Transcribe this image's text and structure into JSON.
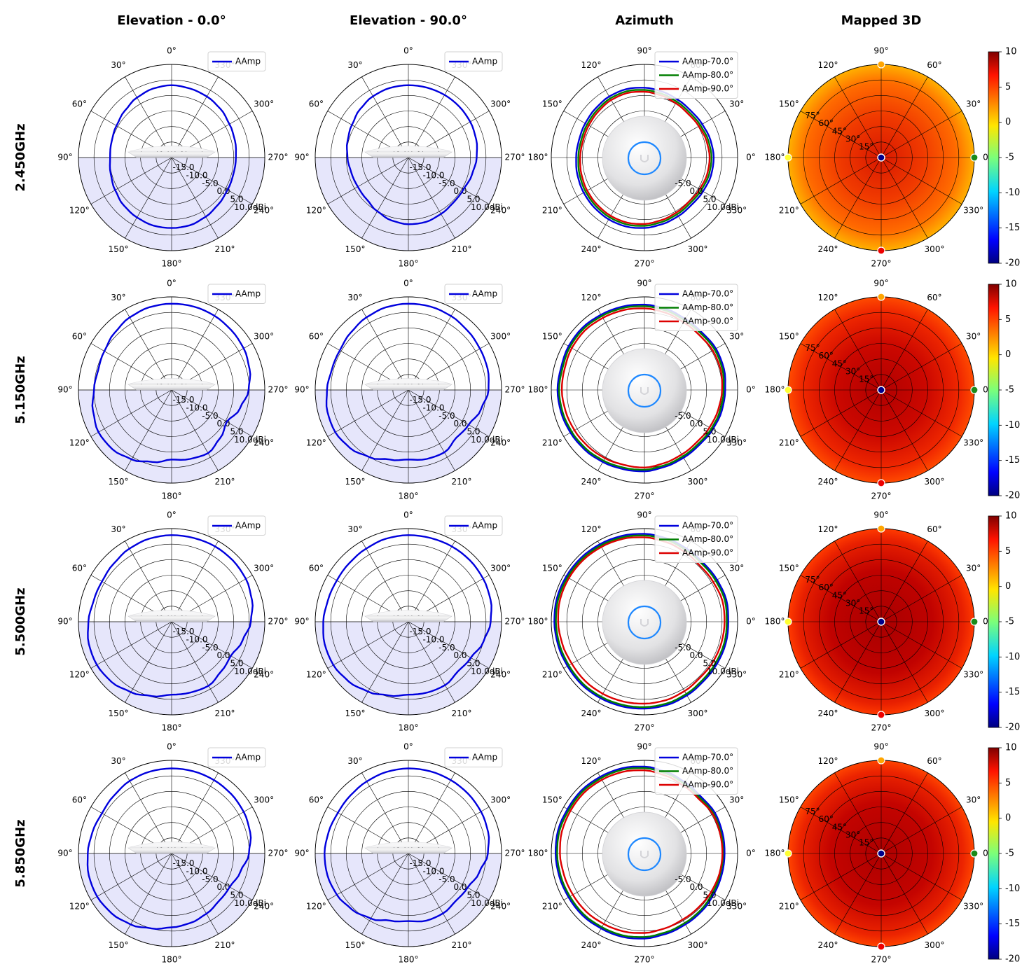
{
  "column_titles": [
    "Elevation - 0.0°",
    "Elevation - 90.0°",
    "Azimuth",
    "Mapped 3D"
  ],
  "row_titles": [
    "2.450GHz",
    "5.150GHz",
    "5.500GHz",
    "5.850GHz"
  ],
  "angle_labels": [
    "0°",
    "30°",
    "60°",
    "90°",
    "120°",
    "150°",
    "180°",
    "210°",
    "240°",
    "270°",
    "300°",
    "330°"
  ],
  "radial_labels": [
    "-15.0",
    "-10.0",
    "-5.0",
    "0.0",
    "5.0",
    "10.0dBi"
  ],
  "elevation_labels": [
    "15°",
    "30°",
    "45°",
    "60°",
    "75°"
  ],
  "colorbar_ticks": [
    "10",
    "5",
    "0",
    "-5",
    "-10",
    "-15",
    "-20"
  ],
  "colors": {
    "aamp": "#0000dd",
    "aamp_70": "#0000dd",
    "aamp_80": "#007f00",
    "aamp_90": "#dd0000",
    "lower_hemisphere_fill": "#e6e6fb",
    "colormap": "jet"
  },
  "chart_data": {
    "type": "polar-grid",
    "subtitle_note": "",
    "radial_range_dBi": [
      -20,
      10
    ],
    "radial_ticks": [
      -15,
      -10,
      -5,
      0,
      5,
      10
    ],
    "angle_step_deg": 30,
    "colorbar_range": [
      -20,
      10
    ],
    "rows": [
      {
        "frequency": "2.450GHz",
        "elevation_0": {
          "series": [
            {
              "name": "AAmp",
              "r_dBi": [
                3.3,
                3.0,
                2.3,
                1.3,
                0.5,
                0.0,
                -0.2,
                0.3,
                1.0,
                1.8,
                2.3,
                2.7,
                2.7,
                2.6,
                2.0,
                1.3,
                0.8,
                0.6,
                0.7,
                1.1,
                1.5,
                2.2,
                2.7,
                3.0
              ]
            }
          ]
        },
        "elevation_90": {
          "series": [
            {
              "name": "AAmp",
              "r_dBi": [
                3.3,
                3.2,
                2.8,
                2.0,
                1.0,
                0.3,
                -0.4,
                -1.0,
                -1.2,
                -1.0,
                0.0,
                1.0,
                1.5,
                1.5,
                1.0,
                0.5,
                0.5,
                1.2,
                2.0,
                2.6,
                3.0,
                3.2,
                3.3,
                3.3
              ]
            }
          ]
        },
        "azimuth": {
          "series": [
            {
              "name": "AAmp-70.0°",
              "r_dBi": [
                2.3,
                2.0,
                1.5,
                1.2,
                1.5,
                2.0,
                2.5,
                2.8,
                2.7,
                2.3,
                2.0,
                1.8,
                2.0,
                2.3,
                2.6,
                2.8,
                3.0,
                3.0,
                2.7,
                2.2,
                1.8,
                1.5,
                1.8,
                2.2
              ]
            },
            {
              "name": "AAmp-80.0°",
              "r_dBi": [
                1.6,
                1.3,
                0.8,
                0.5,
                0.8,
                1.3,
                1.8,
                2.1,
                2.0,
                1.6,
                1.3,
                1.1,
                1.3,
                1.6,
                1.9,
                2.1,
                2.3,
                2.3,
                2.0,
                1.5,
                1.1,
                0.8,
                1.1,
                1.5
              ]
            },
            {
              "name": "AAmp-90.0°",
              "r_dBi": [
                1.0,
                0.7,
                0.2,
                -0.1,
                0.2,
                0.7,
                1.2,
                1.5,
                1.4,
                1.0,
                0.7,
                0.5,
                0.7,
                1.0,
                1.3,
                1.5,
                1.7,
                1.7,
                1.4,
                0.9,
                0.5,
                0.2,
                0.5,
                0.9
              ]
            }
          ]
        },
        "mapped_3d": {
          "level_dBi": [
            3,
            5
          ]
        }
      },
      {
        "frequency": "5.150GHz",
        "elevation_0": {
          "series": [
            {
              "name": "AAmp",
              "r_dBi": [
                7.8,
                7.6,
                7.0,
                6.0,
                5.0,
                4.5,
                5.0,
                6.2,
                7.2,
                7.0,
                5.8,
                4.0,
                2.4,
                3.0,
                3.5,
                2.0,
                0.5,
                2.8,
                4.8,
                6.0,
                6.8,
                7.2,
                7.6,
                7.8
              ]
            }
          ]
        },
        "elevation_90": {
          "series": [
            {
              "name": "AAmp",
              "r_dBi": [
                7.8,
                7.6,
                7.0,
                6.2,
                5.5,
                5.5,
                6.2,
                7.0,
                7.2,
                6.5,
                5.0,
                3.2,
                2.4,
                3.0,
                3.2,
                1.8,
                2.4,
                4.2,
                5.8,
                6.4,
                6.6,
                7.0,
                7.5,
                7.8
              ]
            }
          ]
        },
        "azimuth": {
          "series": [
            {
              "name": "AAmp-70.0°",
              "r_dBi": [
                6.0,
                6.5,
                6.6,
                6.2,
                6.4,
                7.0,
                7.5,
                7.8,
                8.0,
                8.3,
                8.2,
                7.8,
                8.0,
                7.8,
                7.5,
                7.2,
                6.8,
                6.4,
                6.2,
                5.6,
                5.2,
                5.0,
                5.4,
                5.8
              ]
            },
            {
              "name": "AAmp-80.0°",
              "r_dBi": [
                5.5,
                6.0,
                6.1,
                5.7,
                5.9,
                6.5,
                7.0,
                7.3,
                7.5,
                7.8,
                7.7,
                7.3,
                7.5,
                7.3,
                7.0,
                6.7,
                6.3,
                5.9,
                5.7,
                5.1,
                4.7,
                4.5,
                4.9,
                5.3
              ]
            },
            {
              "name": "AAmp-90.0°",
              "r_dBi": [
                5.0,
                5.4,
                5.4,
                5.0,
                5.2,
                5.8,
                6.3,
                6.6,
                6.8,
                7.1,
                7.0,
                6.6,
                6.6,
                6.3,
                6.0,
                5.7,
                5.4,
                5.0,
                5.0,
                4.4,
                4.0,
                3.8,
                4.2,
                4.6
              ]
            }
          ]
        },
        "mapped_3d": {
          "level_dBi": [
            6,
            9
          ]
        }
      },
      {
        "frequency": "5.500GHz",
        "elevation_0": {
          "series": [
            {
              "name": "AAmp",
              "r_dBi": [
                7.9,
                7.7,
                7.2,
                6.4,
                5.9,
                6.0,
                6.8,
                7.6,
                7.8,
                7.4,
                6.2,
                4.8,
                3.5,
                3.6,
                3.8,
                2.6,
                2.0,
                3.6,
                5.5,
                6.8,
                7.6,
                7.9,
                8.0,
                7.9
              ]
            }
          ]
        },
        "elevation_90": {
          "series": [
            {
              "name": "AAmp",
              "r_dBi": [
                7.9,
                7.7,
                7.2,
                6.8,
                6.6,
                6.8,
                7.4,
                7.9,
                7.9,
                7.2,
                6.0,
                4.6,
                3.5,
                3.6,
                3.6,
                2.6,
                3.2,
                5.0,
                6.5,
                7.4,
                7.8,
                8.0,
                8.0,
                7.9
              ]
            }
          ]
        },
        "azimuth": {
          "series": [
            {
              "name": "AAmp-70.0°",
              "r_dBi": [
                7.0,
                7.3,
                7.0,
                6.8,
                7.2,
                7.8,
                8.3,
                8.6,
                8.8,
                9.0,
                9.1,
                9.2,
                9.0,
                8.8,
                8.6,
                8.6,
                8.4,
                8.2,
                8.0,
                7.8,
                7.4,
                7.0,
                7.0,
                7.1
              ]
            },
            {
              "name": "AAmp-80.0°",
              "r_dBi": [
                6.5,
                6.8,
                6.5,
                6.3,
                6.7,
                7.3,
                7.8,
                8.1,
                8.3,
                8.5,
                8.6,
                8.7,
                8.5,
                8.3,
                8.1,
                8.1,
                7.9,
                7.7,
                7.5,
                7.3,
                6.9,
                6.5,
                6.5,
                6.6
              ]
            },
            {
              "name": "AAmp-90.0°",
              "r_dBi": [
                5.8,
                6.0,
                5.6,
                5.4,
                6.0,
                6.6,
                7.2,
                7.6,
                7.8,
                8.0,
                8.1,
                8.1,
                7.8,
                7.4,
                7.0,
                7.0,
                6.8,
                6.6,
                6.4,
                6.2,
                5.8,
                5.4,
                5.6,
                5.7
              ]
            }
          ]
        },
        "mapped_3d": {
          "level_dBi": [
            7,
            9.5
          ]
        }
      },
      {
        "frequency": "5.850GHz",
        "elevation_0": {
          "series": [
            {
              "name": "AAmp",
              "r_dBi": [
                7.4,
                7.3,
                7.0,
                6.3,
                5.9,
                6.4,
                7.0,
                7.6,
                7.7,
                7.3,
                6.4,
                5.0,
                3.8,
                3.2,
                2.4,
                1.6,
                1.6,
                2.9,
                4.9,
                6.2,
                6.8,
                7.1,
                7.3,
                7.4
              ]
            }
          ]
        },
        "elevation_90": {
          "series": [
            {
              "name": "AAmp",
              "r_dBi": [
                7.4,
                7.2,
                6.8,
                6.4,
                6.2,
                6.6,
                7.0,
                7.0,
                6.6,
                5.6,
                4.2,
                2.4,
                1.8,
                2.4,
                2.3,
                1.6,
                2.0,
                3.6,
                5.6,
                6.6,
                7.0,
                7.2,
                7.3,
                7.4
              ]
            }
          ]
        },
        "azimuth": {
          "series": [
            {
              "name": "AAmp-70.0°",
              "r_dBi": [
                5.8,
                6.0,
                6.2,
                5.8,
                6.4,
                7.2,
                8.0,
                8.4,
                8.5,
                8.7,
                8.6,
                8.8,
                8.6,
                8.4,
                8.2,
                8.2,
                7.9,
                7.8,
                7.4,
                6.8,
                6.4,
                6.2,
                5.9,
                5.8
              ]
            },
            {
              "name": "AAmp-80.0°",
              "r_dBi": [
                5.3,
                5.5,
                5.7,
                5.3,
                5.9,
                6.7,
                7.5,
                7.9,
                8.0,
                8.2,
                8.1,
                8.3,
                8.1,
                7.9,
                7.7,
                7.7,
                7.4,
                7.3,
                6.9,
                6.3,
                5.9,
                5.7,
                5.4,
                5.3
              ]
            },
            {
              "name": "AAmp-90.0°",
              "r_dBi": [
                5.1,
                5.2,
                5.4,
                4.8,
                5.2,
                6.0,
                6.8,
                7.2,
                7.4,
                7.6,
                7.5,
                7.5,
                7.2,
                6.8,
                6.6,
                6.5,
                6.2,
                6.0,
                5.6,
                5.0,
                4.6,
                4.6,
                4.8,
                5.0
              ]
            }
          ]
        },
        "mapped_3d": {
          "level_dBi": [
            6.5,
            9.5
          ]
        }
      }
    ]
  }
}
